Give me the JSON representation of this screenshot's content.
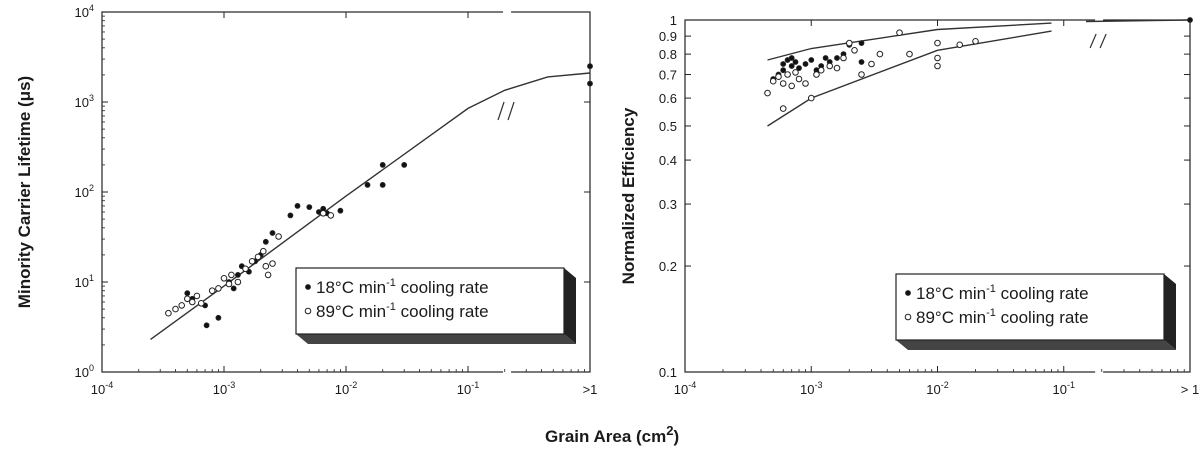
{
  "figure": {
    "shared_xlabel": "Grain Area (cm",
    "shared_xlabel_sup": "2",
    "shared_xlabel_close": ")"
  },
  "chart_data": [
    {
      "type": "scatter",
      "title": "",
      "ylabel": "Minority Carrier Lifetime (μs)",
      "yscale": "log",
      "ylim": [
        1,
        10000
      ],
      "y_ticks": [
        {
          "value": 1,
          "base": "10",
          "exp": "0"
        },
        {
          "value": 10,
          "base": "10",
          "exp": "1"
        },
        {
          "value": 100,
          "base": "10",
          "exp": "2"
        },
        {
          "value": 1000,
          "base": "10",
          "exp": "3"
        },
        {
          "value": 10000,
          "base": "10",
          "exp": "4"
        }
      ],
      "xscale": "log",
      "xlim": [
        0.0001,
        1
      ],
      "x_ticks": [
        {
          "value": 0.0001,
          "base": "10",
          "exp": "-4"
        },
        {
          "value": 0.001,
          "base": "10",
          "exp": "-3"
        },
        {
          "value": 0.01,
          "base": "10",
          "exp": "-2"
        },
        {
          "value": 0.1,
          "base": "10",
          "exp": "-1"
        },
        {
          "value": 1,
          "base": ">1",
          "exp": ""
        }
      ],
      "axis_break_near_x": 0.15,
      "legend_position": "lower-right",
      "grid": false,
      "series": [
        {
          "name": "18°C min-1 cooling rate",
          "name_parts": [
            "18",
            "°C min",
            "-1",
            " cooling rate"
          ],
          "marker": "filled-circle",
          "points": [
            [
              0.0005,
              7.5
            ],
            [
              0.00055,
              6.5
            ],
            [
              0.0007,
              5.5
            ],
            [
              0.00072,
              3.3
            ],
            [
              0.0009,
              4.0
            ],
            [
              0.0011,
              10
            ],
            [
              0.0012,
              8.5
            ],
            [
              0.0013,
              12
            ],
            [
              0.0014,
              15
            ],
            [
              0.0016,
              13
            ],
            [
              0.0018,
              17
            ],
            [
              0.002,
              20
            ],
            [
              0.0022,
              28
            ],
            [
              0.0025,
              35
            ],
            [
              0.0035,
              55
            ],
            [
              0.004,
              70
            ],
            [
              0.005,
              68
            ],
            [
              0.006,
              60
            ],
            [
              0.0065,
              65
            ],
            [
              0.007,
              58
            ],
            [
              0.009,
              62
            ],
            [
              0.015,
              120
            ],
            [
              0.02,
              200
            ],
            [
              0.02,
              120
            ],
            [
              0.03,
              200
            ],
            [
              1,
              1600
            ],
            [
              1,
              2500
            ]
          ]
        },
        {
          "name": "89°C min-1 cooling rate",
          "name_parts": [
            "89",
            "°C min",
            "-1",
            " cooling rate"
          ],
          "marker": "open-circle",
          "points": [
            [
              0.00035,
              4.5
            ],
            [
              0.0004,
              5.0
            ],
            [
              0.00045,
              5.5
            ],
            [
              0.0005,
              6.5
            ],
            [
              0.00055,
              6.0
            ],
            [
              0.0006,
              7.0
            ],
            [
              0.00065,
              5.8
            ],
            [
              0.0008,
              8.0
            ],
            [
              0.0009,
              8.5
            ],
            [
              0.001,
              11
            ],
            [
              0.0011,
              9.5
            ],
            [
              0.00115,
              12
            ],
            [
              0.0013,
              10
            ],
            [
              0.0015,
              14
            ],
            [
              0.0017,
              17
            ],
            [
              0.0019,
              19
            ],
            [
              0.0021,
              22
            ],
            [
              0.0022,
              15
            ],
            [
              0.0023,
              12
            ],
            [
              0.0025,
              16
            ],
            [
              0.0028,
              32
            ],
            [
              0.0065,
              58
            ],
            [
              0.0075,
              55
            ]
          ]
        }
      ],
      "fit_curve": [
        [
          0.00025,
          2.3
        ],
        [
          0.001,
          9
        ],
        [
          0.01,
          90
        ],
        [
          0.1,
          850
        ],
        [
          0.2,
          1350
        ],
        [
          0.45,
          1900
        ],
        [
          1,
          2100
        ]
      ]
    },
    {
      "type": "scatter",
      "title": "",
      "ylabel": "Normalized Efficiency",
      "yscale": "log",
      "ylim": [
        0.1,
        1
      ],
      "y_ticks": [
        {
          "value": 0.1,
          "label": "0.1"
        },
        {
          "value": 0.2,
          "label": "0.2"
        },
        {
          "value": 0.3,
          "label": "0.3"
        },
        {
          "value": 0.4,
          "label": "0.4"
        },
        {
          "value": 0.5,
          "label": "0.5"
        },
        {
          "value": 0.6,
          "label": "0.6"
        },
        {
          "value": 0.7,
          "label": "0.7"
        },
        {
          "value": 0.8,
          "label": "0.8"
        },
        {
          "value": 0.9,
          "label": "0.9"
        },
        {
          "value": 1.0,
          "label": "1"
        }
      ],
      "xscale": "log",
      "xlim": [
        0.0001,
        1
      ],
      "x_ticks": [
        {
          "value": 0.0001,
          "base": "10",
          "exp": "-4"
        },
        {
          "value": 0.001,
          "base": "10",
          "exp": "-3"
        },
        {
          "value": 0.01,
          "base": "10",
          "exp": "-2"
        },
        {
          "value": 0.1,
          "base": "10",
          "exp": "-1"
        },
        {
          "value": 1,
          "base": "> 1",
          "exp": ""
        }
      ],
      "axis_break_near_x": 0.1,
      "legend_position": "lower-right",
      "grid": false,
      "series": [
        {
          "name": "18°C min-1 cooling rate",
          "name_parts": [
            "18",
            "°C min",
            "-1",
            " cooling rate"
          ],
          "marker": "filled-circle",
          "points": [
            [
              0.0005,
              0.68
            ],
            [
              0.00055,
              0.7
            ],
            [
              0.0006,
              0.72
            ],
            [
              0.0006,
              0.75
            ],
            [
              0.00065,
              0.77
            ],
            [
              0.0007,
              0.74
            ],
            [
              0.0007,
              0.78
            ],
            [
              0.00075,
              0.76
            ],
            [
              0.0008,
              0.73
            ],
            [
              0.0009,
              0.75
            ],
            [
              0.001,
              0.77
            ],
            [
              0.0011,
              0.72
            ],
            [
              0.0012,
              0.74
            ],
            [
              0.0013,
              0.78
            ],
            [
              0.0014,
              0.76
            ],
            [
              0.0016,
              0.78
            ],
            [
              0.0018,
              0.8
            ],
            [
              0.002,
              0.85
            ],
            [
              0.0025,
              0.86
            ],
            [
              0.0025,
              0.76
            ],
            [
              1,
              1.0
            ]
          ]
        },
        {
          "name": "89°C min-1 cooling rate",
          "name_parts": [
            "89",
            "°C min",
            "-1",
            " cooling rate"
          ],
          "marker": "open-circle",
          "points": [
            [
              0.00045,
              0.62
            ],
            [
              0.0005,
              0.67
            ],
            [
              0.00055,
              0.69
            ],
            [
              0.0006,
              0.66
            ],
            [
              0.0006,
              0.56
            ],
            [
              0.00065,
              0.7
            ],
            [
              0.0007,
              0.65
            ],
            [
              0.00075,
              0.71
            ],
            [
              0.0008,
              0.68
            ],
            [
              0.0009,
              0.66
            ],
            [
              0.001,
              0.6
            ],
            [
              0.0011,
              0.7
            ],
            [
              0.0012,
              0.72
            ],
            [
              0.0014,
              0.74
            ],
            [
              0.0016,
              0.73
            ],
            [
              0.0018,
              0.78
            ],
            [
              0.002,
              0.86
            ],
            [
              0.0022,
              0.82
            ],
            [
              0.0025,
              0.7
            ],
            [
              0.003,
              0.75
            ],
            [
              0.0035,
              0.8
            ],
            [
              0.005,
              0.92
            ],
            [
              0.006,
              0.8
            ],
            [
              0.01,
              0.86
            ],
            [
              0.01,
              0.78
            ],
            [
              0.01,
              0.74
            ],
            [
              0.015,
              0.85
            ],
            [
              0.02,
              0.87
            ]
          ]
        }
      ],
      "fit_curves": [
        [
          [
            0.00045,
            0.77
          ],
          [
            0.001,
            0.83
          ],
          [
            0.01,
            0.94
          ],
          [
            0.08,
            0.98
          ]
        ],
        [
          [
            0.00045,
            0.5
          ],
          [
            0.001,
            0.6
          ],
          [
            0.01,
            0.82
          ],
          [
            0.08,
            0.93
          ]
        ],
        [
          [
            0.15,
            0.99
          ],
          [
            1,
            1.0
          ]
        ]
      ]
    }
  ]
}
